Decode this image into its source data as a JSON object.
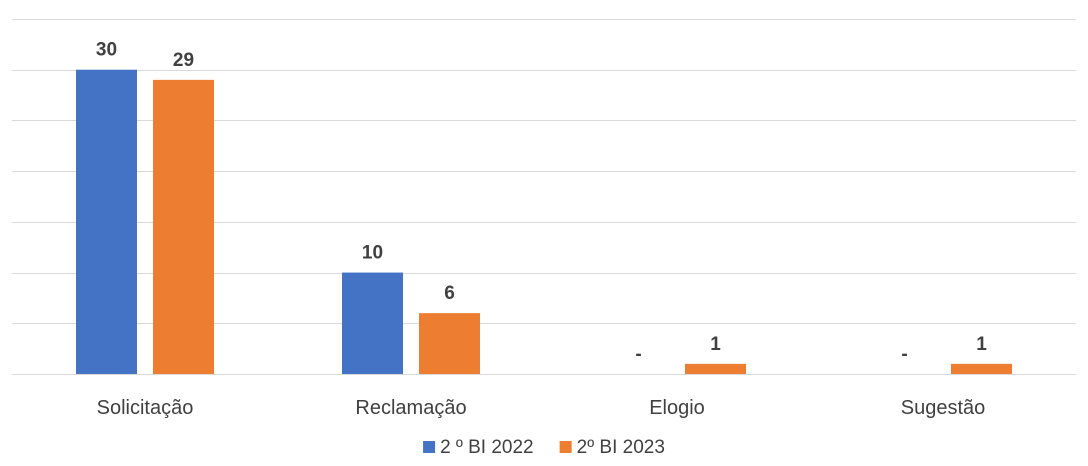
{
  "chart_data": {
    "type": "bar",
    "title": "",
    "xlabel": "",
    "ylabel": "",
    "categories": [
      "Solicitação",
      "Reclamação",
      "Elogio",
      "Sugestão"
    ],
    "series": [
      {
        "name": "2 º BI 2022",
        "values": [
          30,
          10,
          0,
          0
        ],
        "labels": [
          "30",
          "10",
          "-",
          "-"
        ],
        "color": "#4472c4"
      },
      {
        "name": "2º BI 2023",
        "values": [
          29,
          6,
          1,
          1
        ],
        "labels": [
          "29",
          "6",
          "1",
          "1"
        ],
        "color": "#ed7d31"
      }
    ],
    "ylim": [
      0,
      35
    ],
    "y_gridlines": [
      0,
      5,
      10,
      15,
      20,
      25,
      30,
      35
    ],
    "grid": true,
    "legend_position": "bottom"
  }
}
